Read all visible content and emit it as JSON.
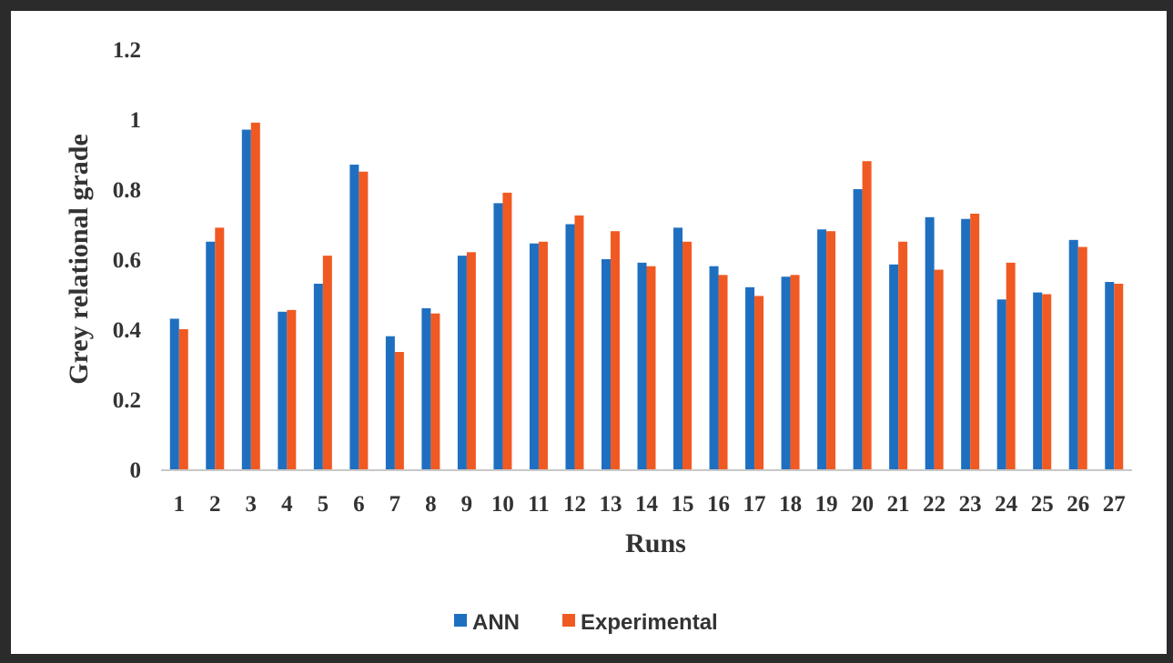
{
  "chart_data": {
    "type": "bar",
    "title": "",
    "xlabel": "Runs",
    "ylabel": "Grey relational grade",
    "ylim": [
      0,
      1.2
    ],
    "yticks": [
      "0",
      "0.2",
      "0.4",
      "0.6",
      "0.8",
      "1",
      "1.2"
    ],
    "categories": [
      "1",
      "2",
      "3",
      "4",
      "5",
      "6",
      "7",
      "8",
      "9",
      "10",
      "11",
      "12",
      "13",
      "14",
      "15",
      "16",
      "17",
      "18",
      "19",
      "20",
      "21",
      "22",
      "23",
      "24",
      "25",
      "26",
      "27"
    ],
    "series": [
      {
        "name": "ANN",
        "color": "#1f6fc0",
        "values": [
          0.43,
          0.65,
          0.97,
          0.45,
          0.53,
          0.87,
          0.38,
          0.46,
          0.61,
          0.76,
          0.645,
          0.7,
          0.6,
          0.59,
          0.69,
          0.58,
          0.52,
          0.55,
          0.685,
          0.8,
          0.585,
          0.72,
          0.715,
          0.485,
          0.505,
          0.655,
          0.535
        ]
      },
      {
        "name": "Experimental",
        "color": "#f05a22",
        "values": [
          0.4,
          0.69,
          0.99,
          0.455,
          0.61,
          0.85,
          0.335,
          0.445,
          0.62,
          0.79,
          0.65,
          0.725,
          0.68,
          0.58,
          0.65,
          0.555,
          0.495,
          0.555,
          0.68,
          0.88,
          0.65,
          0.57,
          0.73,
          0.59,
          0.5,
          0.635,
          0.53
        ]
      }
    ],
    "grid": false,
    "legend": "bottom-center"
  }
}
